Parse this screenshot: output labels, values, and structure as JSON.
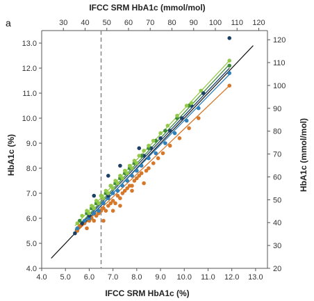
{
  "chart_data": {
    "type": "scatter",
    "panel_label": "a",
    "xlabel": "IFCC SRM HbA1c (%)",
    "x2label": "IFCC SRM HbA1c (mmol/mol)",
    "ylabel": "HbA1c (%)",
    "y2label": "HbA1c (mmol/mol)",
    "xlim": [
      4.0,
      13.5
    ],
    "ylim": [
      4.0,
      13.5
    ],
    "x2lim": [
      20,
      124
    ],
    "y2lim": [
      20,
      124
    ],
    "xticks": [
      "4.0",
      "5.0",
      "6.0",
      "7.0",
      "8.0",
      "9.0",
      "10.0",
      "11.0",
      "12.0",
      "13.0"
    ],
    "yticks": [
      "4.0",
      "5.0",
      "6.0",
      "7.0",
      "8.0",
      "9.0",
      "10.0",
      "11.0",
      "12.0",
      "13.0"
    ],
    "x2ticks": [
      "30",
      "40",
      "50",
      "60",
      "70",
      "80",
      "90",
      "100",
      "110",
      "120"
    ],
    "y2ticks": [
      "20",
      "30",
      "40",
      "50",
      "60",
      "70",
      "80",
      "90",
      "100",
      "110",
      "120"
    ],
    "identity_line": {
      "from": 4.4,
      "to": 12.9
    },
    "cutoff_line_x": 6.5,
    "colors": {
      "identity": "#111111",
      "cutoff": "#888888",
      "dark_navy": "#1c3f66",
      "blue": "#2f7fb8",
      "light_green": "#93c94b",
      "green": "#3d8a3b",
      "orange": "#d6782a",
      "axis": "#555555"
    },
    "series": [
      {
        "color": "#d6782a",
        "fit": {
          "x": [
            5.4,
            11.9
          ],
          "y": [
            5.4,
            11.3
          ]
        },
        "points": [
          [
            5.5,
            5.5
          ],
          [
            5.6,
            5.7
          ],
          [
            5.8,
            5.8
          ],
          [
            5.9,
            5.6
          ],
          [
            6.0,
            5.9
          ],
          [
            6.1,
            6.0
          ],
          [
            6.2,
            5.9
          ],
          [
            6.3,
            6.1
          ],
          [
            6.4,
            6.2
          ],
          [
            6.5,
            6.3
          ],
          [
            6.6,
            6.4
          ],
          [
            6.7,
            6.3
          ],
          [
            6.8,
            6.5
          ],
          [
            6.9,
            6.6
          ],
          [
            7.0,
            6.7
          ],
          [
            7.1,
            6.6
          ],
          [
            7.2,
            6.9
          ],
          [
            7.3,
            6.8
          ],
          [
            7.4,
            7.0
          ],
          [
            7.5,
            7.1
          ],
          [
            7.6,
            7.2
          ],
          [
            7.7,
            7.3
          ],
          [
            7.8,
            7.3
          ],
          [
            7.9,
            7.5
          ],
          [
            8.0,
            7.6
          ],
          [
            8.1,
            7.7
          ],
          [
            8.2,
            7.8
          ],
          [
            8.4,
            7.9
          ],
          [
            8.5,
            8.0
          ],
          [
            8.7,
            8.2
          ],
          [
            8.9,
            8.4
          ],
          [
            9.1,
            8.6
          ],
          [
            9.4,
            8.9
          ],
          [
            9.8,
            9.2
          ],
          [
            10.2,
            9.6
          ],
          [
            10.6,
            10.0
          ],
          [
            11.9,
            11.3
          ],
          [
            6.6,
            5.9
          ],
          [
            7.0,
            6.3
          ],
          [
            7.3,
            6.5
          ],
          [
            7.8,
            7.1
          ],
          [
            8.3,
            7.4
          ]
        ]
      },
      {
        "color": "#2f7fb8",
        "fit": {
          "x": [
            5.4,
            11.9
          ],
          "y": [
            5.45,
            11.75
          ]
        },
        "points": [
          [
            5.5,
            5.6
          ],
          [
            5.8,
            5.9
          ],
          [
            6.0,
            6.0
          ],
          [
            6.2,
            6.2
          ],
          [
            6.4,
            6.3
          ],
          [
            6.6,
            6.6
          ],
          [
            6.8,
            6.8
          ],
          [
            7.0,
            7.0
          ],
          [
            7.2,
            7.1
          ],
          [
            7.4,
            7.3
          ],
          [
            7.6,
            7.5
          ],
          [
            7.8,
            7.7
          ],
          [
            8.0,
            7.9
          ],
          [
            8.2,
            8.1
          ],
          [
            8.5,
            8.4
          ],
          [
            8.8,
            8.6
          ],
          [
            9.2,
            9.0
          ],
          [
            9.6,
            9.4
          ],
          [
            10.1,
            9.9
          ],
          [
            10.6,
            10.4
          ],
          [
            11.9,
            11.8
          ]
        ]
      },
      {
        "color": "#1c3f66",
        "fit": {
          "x": [
            5.4,
            11.9
          ],
          "y": [
            5.5,
            12.0
          ]
        },
        "points": [
          [
            5.4,
            5.4
          ],
          [
            5.7,
            5.8
          ],
          [
            6.0,
            6.1
          ],
          [
            6.2,
            6.4
          ],
          [
            6.4,
            6.6
          ],
          [
            6.6,
            6.8
          ],
          [
            6.8,
            6.9
          ],
          [
            7.0,
            7.2
          ],
          [
            7.2,
            7.4
          ],
          [
            7.4,
            7.6
          ],
          [
            7.6,
            7.8
          ],
          [
            7.8,
            8.0
          ],
          [
            8.0,
            8.2
          ],
          [
            8.3,
            8.5
          ],
          [
            8.6,
            8.8
          ],
          [
            9.0,
            9.2
          ],
          [
            9.4,
            9.5
          ],
          [
            9.9,
            10.0
          ],
          [
            10.3,
            10.5
          ],
          [
            10.8,
            11.0
          ],
          [
            11.9,
            13.2
          ],
          [
            6.2,
            6.9
          ],
          [
            6.8,
            7.7
          ],
          [
            7.3,
            8.1
          ],
          [
            8.1,
            8.8
          ]
        ]
      },
      {
        "color": "#3d8a3b",
        "fit": {
          "x": [
            5.4,
            11.9
          ],
          "y": [
            5.55,
            12.15
          ]
        },
        "points": [
          [
            5.6,
            5.9
          ],
          [
            5.9,
            6.2
          ],
          [
            6.1,
            6.4
          ],
          [
            6.3,
            6.6
          ],
          [
            6.5,
            6.9
          ],
          [
            6.7,
            7.0
          ],
          [
            6.9,
            7.3
          ],
          [
            7.1,
            7.4
          ],
          [
            7.3,
            7.6
          ],
          [
            7.5,
            7.8
          ],
          [
            7.7,
            8.0
          ],
          [
            7.9,
            8.2
          ],
          [
            8.2,
            8.5
          ],
          [
            8.5,
            8.8
          ],
          [
            8.8,
            9.1
          ],
          [
            9.2,
            9.5
          ],
          [
            9.7,
            10.0
          ],
          [
            10.2,
            10.5
          ],
          [
            11.9,
            12.1
          ]
        ]
      },
      {
        "color": "#93c94b",
        "fit": {
          "x": [
            5.4,
            11.9
          ],
          "y": [
            5.7,
            12.3
          ]
        },
        "points": [
          [
            5.5,
            5.8
          ],
          [
            5.7,
            6.1
          ],
          [
            5.9,
            6.3
          ],
          [
            6.0,
            6.2
          ],
          [
            6.1,
            6.5
          ],
          [
            6.2,
            6.4
          ],
          [
            6.3,
            6.7
          ],
          [
            6.4,
            6.6
          ],
          [
            6.5,
            6.9
          ],
          [
            6.6,
            6.8
          ],
          [
            6.7,
            7.1
          ],
          [
            6.8,
            7.0
          ],
          [
            6.9,
            7.3
          ],
          [
            7.0,
            7.2
          ],
          [
            7.1,
            7.5
          ],
          [
            7.2,
            7.4
          ],
          [
            7.3,
            7.7
          ],
          [
            7.4,
            7.6
          ],
          [
            7.5,
            7.9
          ],
          [
            7.6,
            7.8
          ],
          [
            7.7,
            8.1
          ],
          [
            7.8,
            8.0
          ],
          [
            7.9,
            8.3
          ],
          [
            8.0,
            8.2
          ],
          [
            8.1,
            8.5
          ],
          [
            8.3,
            8.7
          ],
          [
            8.5,
            8.9
          ],
          [
            8.7,
            9.1
          ],
          [
            9.0,
            9.4
          ],
          [
            9.3,
            9.7
          ],
          [
            9.7,
            10.1
          ],
          [
            10.1,
            10.5
          ],
          [
            10.3,
            10.6
          ],
          [
            10.7,
            11.1
          ],
          [
            11.9,
            12.3
          ]
        ]
      }
    ]
  }
}
